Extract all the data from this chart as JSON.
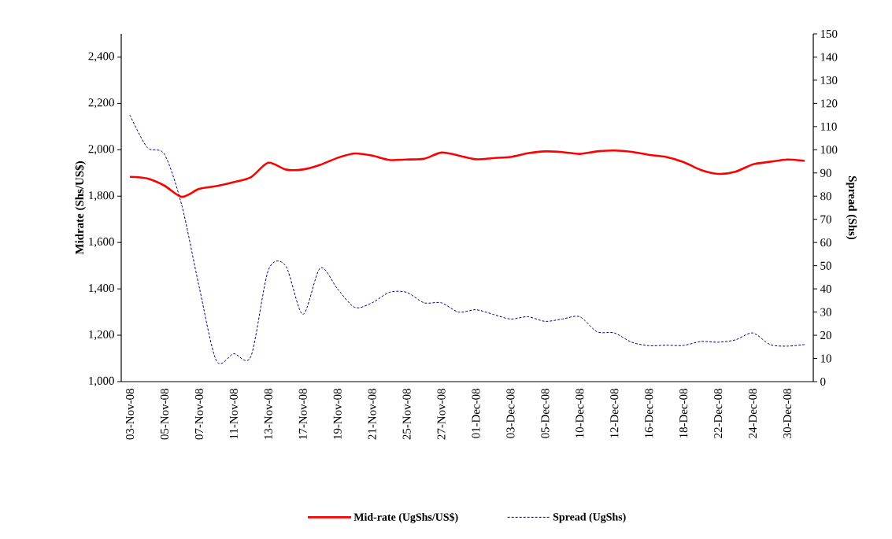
{
  "chart_data": {
    "type": "line",
    "categories": [
      "03-Nov-08",
      null,
      "05-Nov-08",
      null,
      "07-Nov-08",
      null,
      "11-Nov-08",
      null,
      "13-Nov-08",
      null,
      "17-Nov-08",
      null,
      "19-Nov-08",
      null,
      "21-Nov-08",
      null,
      "25-Nov-08",
      null,
      "27-Nov-08",
      null,
      "01-Dec-08",
      null,
      "03-Dec-08",
      null,
      "05-Dec-08",
      null,
      "10-Dec-08",
      null,
      "12-Dec-08",
      null,
      "16-Dec-08",
      null,
      "18-Dec-08",
      null,
      "22-Dec-08",
      null,
      "24-Dec-08",
      null,
      "30-Dec-08",
      null
    ],
    "series": [
      {
        "name": "Mid-rate (UgShs/US$)",
        "color": "#ff0000",
        "line_style": "solid",
        "values": [
          1883,
          1876,
          1845,
          1797,
          1831,
          1843,
          1860,
          1882,
          1944,
          1915,
          1915,
          1935,
          1965,
          1984,
          1975,
          1956,
          1958,
          1961,
          1988,
          1975,
          1959,
          1964,
          1969,
          1985,
          1993,
          1990,
          1982,
          1993,
          1997,
          1991,
          1978,
          1969,
          1947,
          1913,
          1896,
          1905,
          1937,
          1948,
          1958,
          1952
        ]
      },
      {
        "name": "Spread (UgShs)",
        "color": "#000080",
        "line_style": "dashed",
        "axis": "y2",
        "values": [
          115,
          101,
          98,
          76,
          41,
          9,
          12,
          11,
          48,
          50,
          29,
          49,
          40,
          32,
          34,
          38.5,
          38.5,
          34,
          34,
          30,
          31,
          29,
          27,
          28,
          26,
          27,
          28,
          21.5,
          21,
          17,
          15.5,
          15.7,
          15.6,
          17.3,
          17,
          18,
          21,
          16,
          15.3,
          16
        ]
      }
    ],
    "ylabel": "Midrate (Shs/US$)",
    "y2label": "Spread (Shs)",
    "ylim": [
      1000,
      2500
    ],
    "yticks": [
      {
        "value": 1000,
        "label": "1,000"
      },
      {
        "value": 1200,
        "label": "1,200"
      },
      {
        "value": 1400,
        "label": "1,400"
      },
      {
        "value": 1600,
        "label": "1,600"
      },
      {
        "value": 1800,
        "label": "1,800"
      },
      {
        "value": 2000,
        "label": "2,000"
      },
      {
        "value": 2200,
        "label": "2,200"
      },
      {
        "value": 2400,
        "label": "2,400"
      }
    ],
    "y2lim": [
      0,
      150
    ],
    "y2ticks": [
      0,
      10,
      20,
      30,
      40,
      50,
      60,
      70,
      80,
      90,
      100,
      110,
      120,
      130,
      140,
      150
    ],
    "legend": "bottom",
    "marker": "none"
  }
}
